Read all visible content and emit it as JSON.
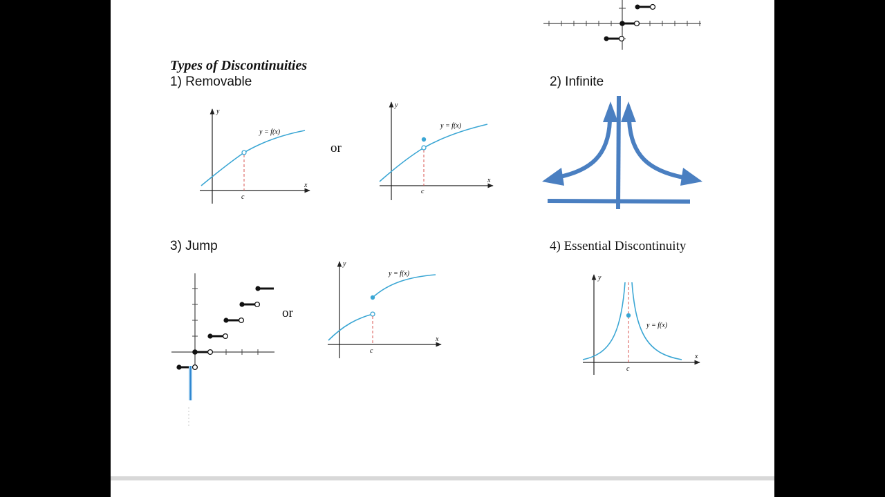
{
  "document": {
    "heading": "Types of Discontinuities",
    "section_removable": "1) Removable",
    "section_infinite": "2) Infinite",
    "section_jump": "3) Jump",
    "section_essential": "4) Essential Discontinuity",
    "connector_or": "or"
  },
  "graphs": {
    "axis_x": "x",
    "axis_y": "y",
    "point_c": "c",
    "function_label": "y = f(x)"
  },
  "colors": {
    "curve": "#3aa6d4",
    "dashed_line": "#d9534f",
    "big_arrow": "#4a7fc1",
    "axis": "#222222",
    "page": "#ffffff",
    "background": "#000000"
  }
}
